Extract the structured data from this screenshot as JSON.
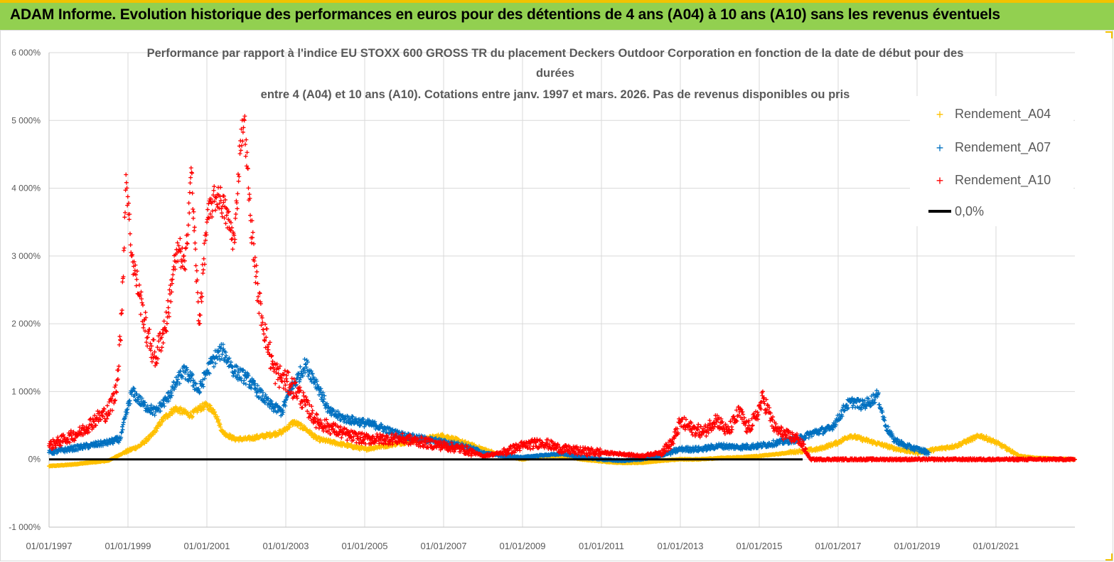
{
  "header": {
    "title": "ADAM Informe. Evolution historique des performances en euros pour des détentions de 4 ans (A04) à 10 ans (A10) sans les revenus éventuels"
  },
  "chart_data": {
    "type": "scatter",
    "title_lines": [
      "Performance par rapport à l'indice EU STOXX 600 GROSS TR  du placement Deckers Outdoor Corporation en fonction de la date de début pour des",
      "durées",
      "entre 4 (A04) et 10 ans (A10).  Cotations entre janv. 1997 et mars. 2026. Pas de revenus disponibles ou pris"
    ],
    "y_ticks": [
      "-1 000%",
      "0%",
      "1 000%",
      "2 000%",
      "3 000%",
      "4 000%",
      "5 000%",
      "6 000%"
    ],
    "x_ticks": [
      "01/01/1997",
      "01/01/1999",
      "01/01/2001",
      "01/01/2003",
      "01/01/2005",
      "01/01/2007",
      "01/01/2009",
      "01/01/2011",
      "01/01/2013",
      "01/01/2015",
      "01/01/2017",
      "01/01/2019",
      "01/01/2021"
    ],
    "ylim": [
      -1000,
      6000
    ],
    "xlim": [
      1997.0,
      2023.0
    ],
    "legend": [
      "Rendement_A04",
      "Rendement_A07",
      "Rendement_A10",
      "0,0%"
    ],
    "colors": {
      "A04": "#ffc000",
      "A07": "#0070c0",
      "A10": "#ff0000",
      "zero": "#000000"
    },
    "series": [
      {
        "name": "Rendement_A04",
        "x": [
          1997.0,
          1997.5,
          1998.0,
          1998.5,
          1998.9,
          1999.3,
          1999.6,
          1999.9,
          2000.2,
          2000.4,
          2000.6,
          2000.8,
          2001.0,
          2001.2,
          2001.4,
          2001.7,
          2002.0,
          2002.5,
          2002.9,
          2003.2,
          2003.5,
          2003.8,
          2004.2,
          2004.6,
          2005.0,
          2005.5,
          2006.0,
          2006.5,
          2007.0,
          2007.5,
          2008.0,
          2008.5,
          2009.0,
          2009.5,
          2010.0,
          2010.5,
          2011.0,
          2011.5,
          2012.0,
          2012.5,
          2013.0,
          2013.5,
          2014.0,
          2014.5,
          2015.0,
          2015.5,
          2016.0,
          2016.5,
          2017.0,
          2017.3,
          2017.6,
          2017.9,
          2018.2,
          2018.5,
          2019.0,
          2019.5,
          2020.0,
          2020.3,
          2020.6,
          2021.0,
          2021.3,
          2021.6,
          2022.0,
          2022.5,
          2023.0
        ],
        "y": [
          -100,
          -80,
          -50,
          -20,
          100,
          200,
          350,
          600,
          750,
          700,
          650,
          750,
          800,
          700,
          400,
          300,
          300,
          350,
          400,
          550,
          450,
          300,
          250,
          200,
          150,
          200,
          250,
          300,
          350,
          250,
          150,
          50,
          0,
          50,
          50,
          0,
          -30,
          -50,
          -50,
          -20,
          0,
          0,
          20,
          30,
          50,
          80,
          120,
          150,
          250,
          350,
          300,
          250,
          200,
          150,
          100,
          150,
          200,
          280,
          350,
          250,
          150,
          50,
          20,
          10,
          0
        ]
      },
      {
        "name": "Rendement_A07",
        "x": [
          1997.0,
          1997.5,
          1998.0,
          1998.5,
          1998.8,
          1999.1,
          1999.4,
          1999.7,
          2000.0,
          2000.2,
          2000.4,
          2000.6,
          2000.8,
          2001.0,
          2001.2,
          2001.4,
          2001.7,
          2002.0,
          2002.3,
          2002.6,
          2002.9,
          2003.1,
          2003.3,
          2003.5,
          2003.8,
          2004.1,
          2004.5,
          2004.9,
          2005.3,
          2005.7,
          2006.0,
          2006.5,
          2007.0,
          2007.5,
          2008.0,
          2008.5,
          2009.0,
          2009.5,
          2010.0,
          2010.5,
          2011.0,
          2011.5,
          2012.0,
          2012.5,
          2013.0,
          2013.5,
          2014.0,
          2014.5,
          2015.0,
          2015.5,
          2016.0,
          2016.4,
          2016.8,
          2017.0,
          2017.2,
          2017.4,
          2017.6,
          2017.8,
          2018.0,
          2018.2,
          2018.4,
          2018.7,
          2019.0,
          2019.3
        ],
        "y": [
          100,
          150,
          200,
          250,
          300,
          1000,
          800,
          700,
          900,
          1100,
          1300,
          1200,
          1000,
          1300,
          1500,
          1600,
          1300,
          1200,
          1000,
          800,
          700,
          1000,
          1200,
          1400,
          1100,
          700,
          600,
          550,
          500,
          400,
          350,
          300,
          250,
          200,
          100,
          50,
          30,
          60,
          80,
          30,
          0,
          -20,
          0,
          50,
          150,
          150,
          200,
          180,
          200,
          250,
          300,
          400,
          450,
          600,
          800,
          850,
          800,
          850,
          950,
          500,
          300,
          200,
          150,
          100
        ]
      },
      {
        "name": "Rendement_A10",
        "x": [
          1997.0,
          1997.4,
          1997.8,
          1998.2,
          1998.5,
          1998.7,
          1998.85,
          1998.95,
          1999.1,
          1999.3,
          1999.5,
          1999.7,
          1999.85,
          2000.0,
          2000.15,
          2000.3,
          2000.45,
          2000.6,
          2000.8,
          2001.0,
          2001.15,
          2001.3,
          2001.5,
          2001.7,
          2001.85,
          2001.95,
          2002.1,
          2002.3,
          2002.5,
          2002.7,
          2002.9,
          2003.1,
          2003.3,
          2003.5,
          2003.8,
          2004.2,
          2004.6,
          2005.0,
          2005.5,
          2006.0,
          2006.5,
          2007.0,
          2007.5,
          2008.0,
          2008.5,
          2009.0,
          2009.5,
          2010.0,
          2010.5,
          2011.0,
          2011.5,
          2012.0,
          2012.5,
          2012.8,
          2013.0,
          2013.3,
          2013.6,
          2013.9,
          2014.2,
          2014.5,
          2014.7,
          2014.9,
          2015.1,
          2015.4,
          2015.7,
          2016.0,
          2016.3,
          2016.6,
          2017.0,
          2018.0,
          2019.0,
          2020.0,
          2021.0,
          2022.0,
          2023.0
        ],
        "y": [
          200,
          300,
          400,
          600,
          700,
          1000,
          2200,
          4200,
          3000,
          2400,
          1800,
          1500,
          1800,
          2100,
          2800,
          3100,
          2800,
          4300,
          2000,
          3500,
          3800,
          3900,
          3600,
          3200,
          4700,
          5000,
          3600,
          2400,
          1800,
          1300,
          1200,
          1100,
          1000,
          800,
          550,
          450,
          350,
          300,
          300,
          300,
          250,
          200,
          150,
          50,
          100,
          200,
          250,
          150,
          120,
          100,
          80,
          50,
          100,
          250,
          550,
          450,
          400,
          600,
          400,
          700,
          450,
          600,
          900,
          450,
          350,
          300,
          0,
          0,
          0,
          0,
          0,
          0,
          0,
          0,
          0
        ]
      }
    ]
  }
}
